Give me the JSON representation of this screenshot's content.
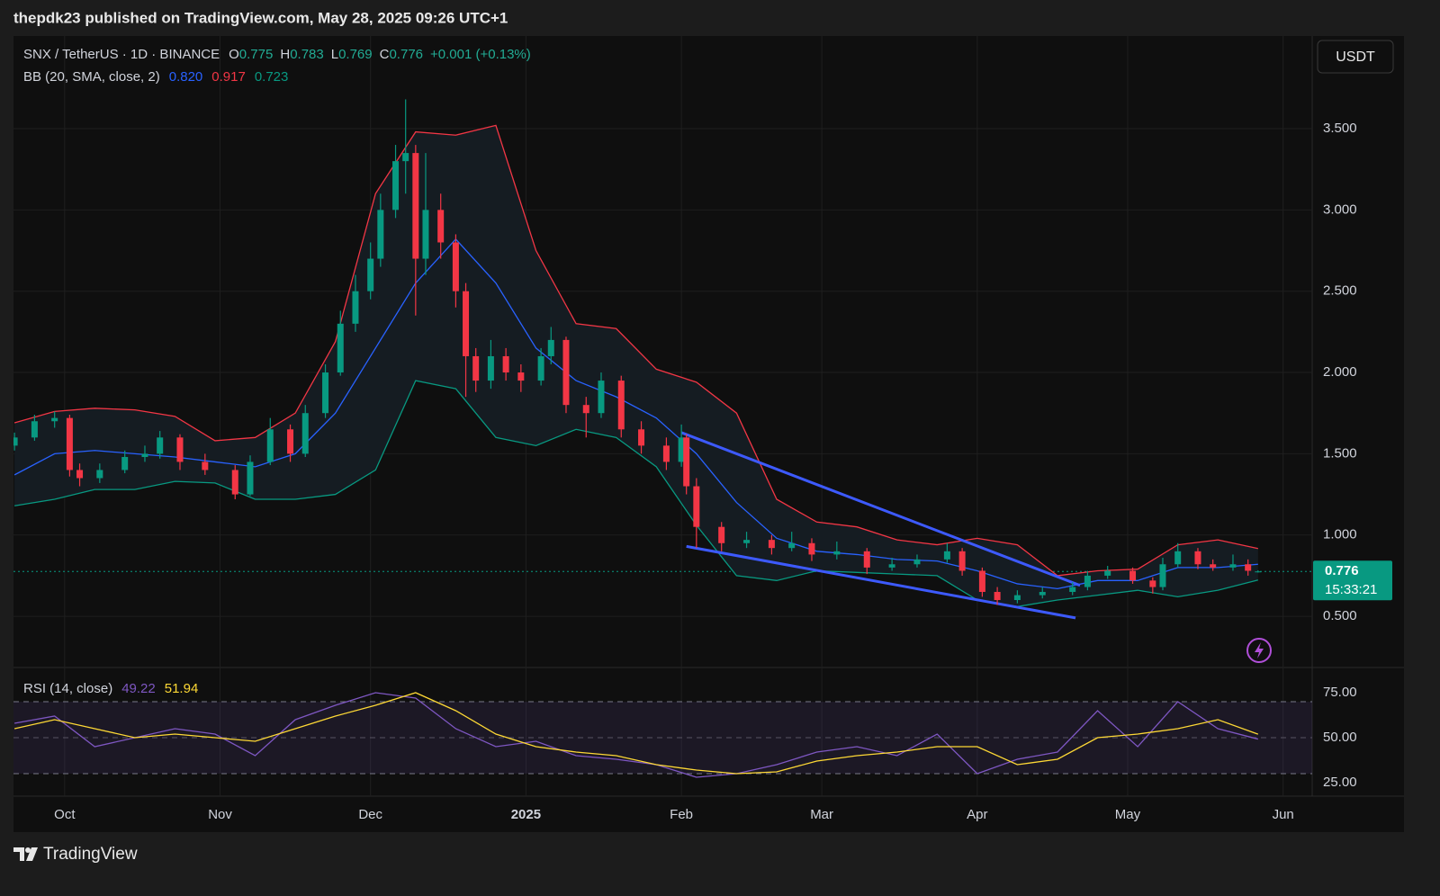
{
  "header": {
    "publisher": "thepdk23 published on TradingView.com, May 28, 2025 09:26 UTC+1"
  },
  "footer": {
    "brand": "TradingView"
  },
  "chart_data": {
    "type": "candlestick",
    "symbol": "SNX / TetherUS · 1D · BINANCE",
    "ohlc_letters": [
      "O",
      "H",
      "L",
      "C"
    ],
    "change": "+0.001 (+0.13%)",
    "currency": "USDT",
    "countdown": "15:33:21",
    "up_color": "#089981",
    "down_color": "#f23645",
    "x": [
      -10,
      -6,
      -2,
      1,
      3,
      7,
      12,
      16,
      19,
      23,
      28,
      34,
      37,
      41,
      45,
      48,
      52,
      55,
      58,
      61,
      63,
      66,
      68,
      70,
      72,
      75,
      78,
      80,
      82,
      85,
      88,
      91,
      95,
      97,
      100,
      104,
      107,
      111,
      115,
      120,
      123,
      124,
      126,
      131,
      136,
      141,
      145,
      149,
      154,
      160,
      165,
      170,
      176,
      179,
      183,
      186,
      190,
      195,
      201,
      204,
      208,
      213,
      217,
      219,
      222,
      226,
      229,
      233,
      236,
      238
    ],
    "open": [
      1.55,
      1.6,
      1.7,
      1.72,
      1.4,
      1.35,
      1.4,
      1.48,
      1.5,
      1.6,
      1.45,
      1.4,
      1.25,
      1.45,
      1.65,
      1.5,
      1.75,
      2.0,
      2.3,
      2.5,
      2.7,
      3.0,
      3.3,
      3.35,
      2.7,
      3.0,
      2.8,
      2.5,
      2.1,
      1.95,
      2.1,
      2.0,
      1.95,
      2.1,
      2.2,
      1.8,
      1.75,
      1.95,
      1.65,
      1.55,
      1.45,
      1.6,
      1.3,
      1.05,
      0.95,
      0.97,
      0.92,
      0.95,
      0.88,
      0.9,
      0.8,
      0.82,
      0.85,
      0.9,
      0.78,
      0.65,
      0.6,
      0.63,
      0.65,
      0.68,
      0.75,
      0.78,
      0.72,
      0.68,
      0.82,
      0.9,
      0.82,
      0.8,
      0.82,
      0.775
    ],
    "high": [
      1.63,
      1.74,
      1.76,
      1.74,
      1.44,
      1.44,
      1.52,
      1.55,
      1.64,
      1.62,
      1.5,
      1.43,
      1.49,
      1.72,
      1.68,
      1.8,
      2.05,
      2.38,
      2.6,
      2.8,
      3.1,
      3.4,
      3.68,
      3.4,
      3.35,
      3.1,
      2.85,
      2.55,
      2.15,
      2.2,
      2.15,
      2.05,
      2.15,
      2.28,
      2.22,
      1.85,
      2.0,
      1.98,
      1.7,
      1.6,
      1.68,
      1.62,
      1.35,
      1.08,
      1.02,
      1.0,
      1.02,
      0.98,
      0.96,
      0.92,
      0.86,
      0.88,
      0.95,
      0.92,
      0.8,
      0.68,
      0.66,
      0.68,
      0.71,
      0.78,
      0.81,
      0.8,
      0.74,
      0.86,
      0.95,
      0.92,
      0.85,
      0.88,
      0.85,
      0.783
    ],
    "low": [
      1.52,
      1.58,
      1.66,
      1.36,
      1.3,
      1.32,
      1.38,
      1.45,
      1.47,
      1.4,
      1.37,
      1.22,
      1.24,
      1.43,
      1.45,
      1.48,
      1.72,
      1.98,
      2.25,
      2.45,
      2.65,
      2.95,
      3.1,
      2.35,
      2.6,
      2.7,
      2.4,
      1.85,
      1.88,
      1.9,
      1.95,
      1.88,
      1.92,
      2.05,
      1.75,
      1.6,
      1.72,
      1.6,
      1.5,
      1.4,
      1.42,
      1.25,
      0.92,
      0.9,
      0.92,
      0.88,
      0.9,
      0.84,
      0.85,
      0.76,
      0.78,
      0.8,
      0.83,
      0.75,
      0.62,
      0.57,
      0.58,
      0.61,
      0.63,
      0.66,
      0.73,
      0.7,
      0.64,
      0.66,
      0.8,
      0.79,
      0.78,
      0.78,
      0.75,
      0.769
    ],
    "close": [
      1.6,
      1.7,
      1.72,
      1.4,
      1.35,
      1.4,
      1.48,
      1.5,
      1.6,
      1.45,
      1.4,
      1.25,
      1.45,
      1.65,
      1.5,
      1.75,
      2.0,
      2.3,
      2.5,
      2.7,
      3.0,
      3.3,
      3.35,
      2.7,
      3.0,
      2.8,
      2.5,
      2.1,
      1.95,
      2.1,
      2.0,
      1.95,
      2.1,
      2.2,
      1.8,
      1.75,
      1.95,
      1.65,
      1.55,
      1.45,
      1.6,
      1.3,
      1.05,
      0.95,
      0.97,
      0.92,
      0.95,
      0.88,
      0.9,
      0.8,
      0.82,
      0.85,
      0.9,
      0.78,
      0.65,
      0.6,
      0.63,
      0.65,
      0.68,
      0.75,
      0.78,
      0.72,
      0.68,
      0.82,
      0.9,
      0.82,
      0.8,
      0.82,
      0.78,
      0.776
    ],
    "xlim": [
      -10.2,
      248.8
    ],
    "xticks": [
      {
        "value": 0,
        "label": "Oct"
      },
      {
        "value": 31,
        "label": "Nov"
      },
      {
        "value": 61,
        "label": "Dec"
      },
      {
        "value": 92,
        "label": "2025"
      },
      {
        "value": 123,
        "label": "Feb"
      },
      {
        "value": 151,
        "label": "Mar"
      },
      {
        "value": 182,
        "label": "Apr"
      },
      {
        "value": 212,
        "label": "May"
      },
      {
        "value": 243,
        "label": "Jun"
      }
    ],
    "ylim": [
      0.185,
      4.07
    ],
    "yticks": [
      {
        "value": 0.5,
        "label": "0.500"
      },
      {
        "value": 1,
        "label": "1.000"
      },
      {
        "value": 1.5,
        "label": "1.500"
      },
      {
        "value": 2,
        "label": "2.000"
      },
      {
        "value": 2.5,
        "label": "2.500"
      },
      {
        "value": 3,
        "label": "3.000"
      },
      {
        "value": 3.5,
        "label": "3.500"
      }
    ],
    "grid": true,
    "bb": {
      "title": "BB (20, SMA, close, 2)",
      "legend_values": [
        "0.820",
        "0.917",
        "0.723"
      ],
      "fill": "#151c22",
      "x": [
        -10,
        -2,
        6,
        14,
        22,
        30,
        38,
        46,
        54,
        62,
        70,
        78,
        86,
        94,
        102,
        110,
        118,
        126,
        134,
        142,
        150,
        158,
        166,
        174,
        182,
        190,
        198,
        206,
        214,
        222,
        230,
        238
      ],
      "series": [
        {
          "color": "#2962ff",
          "values": [
            1.37,
            1.5,
            1.52,
            1.5,
            1.48,
            1.45,
            1.42,
            1.5,
            1.75,
            2.15,
            2.55,
            2.82,
            2.55,
            2.15,
            1.95,
            1.85,
            1.72,
            1.5,
            1.2,
            0.98,
            0.9,
            0.88,
            0.85,
            0.84,
            0.78,
            0.7,
            0.67,
            0.72,
            0.72,
            0.8,
            0.8,
            0.82
          ]
        },
        {
          "color": "#f23645",
          "values": [
            1.69,
            1.76,
            1.78,
            1.77,
            1.73,
            1.58,
            1.6,
            1.75,
            2.19,
            3.1,
            3.48,
            3.46,
            3.52,
            2.75,
            2.3,
            2.27,
            2.02,
            1.94,
            1.75,
            1.22,
            1.08,
            1.05,
            0.97,
            0.94,
            0.98,
            0.94,
            0.75,
            0.78,
            0.79,
            0.94,
            0.97,
            0.917
          ]
        },
        {
          "color": "#089981",
          "values": [
            1.18,
            1.22,
            1.28,
            1.28,
            1.33,
            1.32,
            1.22,
            1.22,
            1.25,
            1.4,
            1.95,
            1.9,
            1.6,
            1.55,
            1.65,
            1.6,
            1.42,
            1.06,
            0.75,
            0.72,
            0.78,
            0.77,
            0.76,
            0.75,
            0.6,
            0.56,
            0.6,
            0.63,
            0.66,
            0.62,
            0.66,
            0.723
          ]
        }
      ]
    },
    "trendlines": {
      "color": "#3d5afe",
      "lines": [
        {
          "x": [
            123,
            202.5
          ],
          "y": [
            1.63,
            0.69
          ]
        },
        {
          "x": [
            124,
            201.6
          ],
          "y": [
            0.93,
            0.49
          ]
        }
      ]
    },
    "rsi": {
      "type": "line",
      "title": "RSI (14, close)",
      "x": [
        -10,
        -2,
        6,
        14,
        22,
        30,
        38,
        46,
        54,
        62,
        70,
        78,
        86,
        94,
        102,
        110,
        118,
        126,
        134,
        142,
        150,
        158,
        166,
        174,
        182,
        190,
        198,
        206,
        214,
        222,
        230,
        238
      ],
      "series": [
        {
          "color": "#7e57c2",
          "values": [
            58,
            62,
            45,
            50,
            55,
            52,
            40,
            60,
            68,
            75,
            72,
            55,
            45,
            48,
            40,
            38,
            35,
            28,
            30,
            35,
            42,
            45,
            40,
            52,
            30,
            38,
            42,
            65,
            45,
            70,
            55,
            49.22
          ]
        },
        {
          "color": "#fdd835",
          "values": [
            55,
            60,
            55,
            50,
            52,
            50,
            48,
            55,
            62,
            68,
            75,
            65,
            52,
            45,
            42,
            40,
            35,
            32,
            30,
            31,
            37,
            40,
            42,
            45,
            45,
            35,
            38,
            50,
            52,
            55,
            60,
            51.94
          ]
        }
      ],
      "bands": [
        30,
        70
      ],
      "midline": 50,
      "ylim": [
        17.5,
        89
      ],
      "yticks": [
        {
          "value": 75,
          "label": "75.00"
        },
        {
          "value": 50,
          "label": "50.00"
        },
        {
          "value": 25,
          "label": "25.00"
        }
      ]
    }
  }
}
